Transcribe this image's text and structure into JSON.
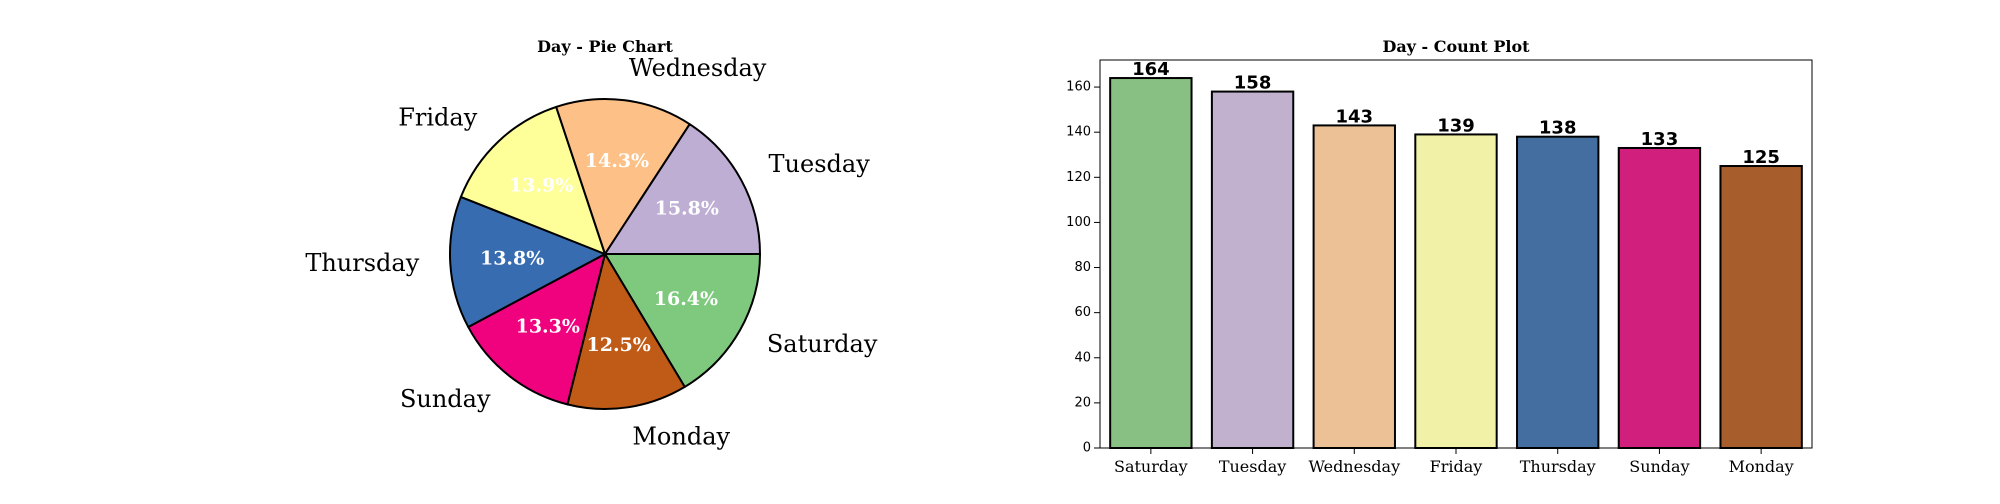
{
  "colors": {
    "Saturday": "#7fc97f",
    "Tuesday": "#beaed4",
    "Wednesday": "#fdc086",
    "Friday": "#ffff99",
    "Thursday": "#386cb0",
    "Sunday": "#f0027f",
    "Monday": "#bf5b17"
  },
  "bar_colors": {
    "Saturday": "#88bf83",
    "Tuesday": "#c1b1cf",
    "Wednesday": "#edc196",
    "Friday": "#f1f1a7",
    "Thursday": "#446ea0",
    "Sunday": "#d11f7e",
    "Monday": "#a85d2d"
  },
  "chart_data": [
    {
      "type": "pie",
      "title": "Day - Pie Chart",
      "labels": [
        "Saturday",
        "Monday",
        "Sunday",
        "Thursday",
        "Friday",
        "Wednesday",
        "Tuesday"
      ],
      "values": [
        164,
        125,
        133,
        138,
        139,
        143,
        158
      ],
      "percent_labels": [
        "16.4%",
        "12.5%",
        "13.3%",
        "13.8%",
        "13.9%",
        "14.3%",
        "15.8%"
      ]
    },
    {
      "type": "bar",
      "title": "Day - Count Plot",
      "categories": [
        "Saturday",
        "Tuesday",
        "Wednesday",
        "Friday",
        "Thursday",
        "Sunday",
        "Monday"
      ],
      "values": [
        164,
        158,
        143,
        139,
        138,
        133,
        125
      ],
      "value_labels": [
        "164",
        "158",
        "143",
        "139",
        "138",
        "133",
        "125"
      ],
      "xlabel": "",
      "ylabel": "",
      "ylim": [
        0,
        172
      ],
      "yticks": [
        0,
        20,
        40,
        60,
        80,
        100,
        120,
        140,
        160
      ],
      "ytick_labels": [
        "0",
        "20",
        "40",
        "60",
        "80",
        "100",
        "120",
        "140",
        "160"
      ],
      "grid": false
    }
  ]
}
